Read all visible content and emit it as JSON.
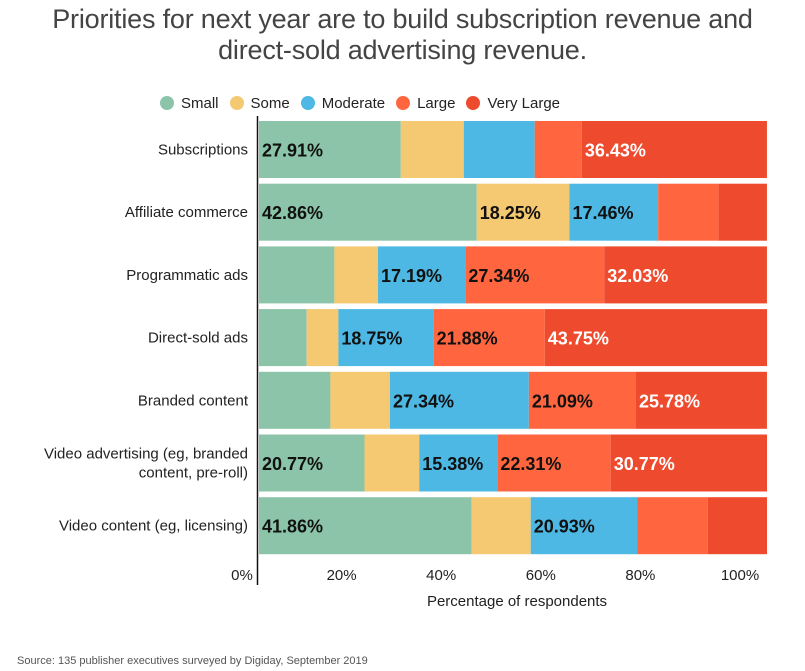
{
  "chart_data": {
    "type": "bar",
    "orientation": "horizontal",
    "stacked": true,
    "normalized": true,
    "title": "Priorities for next year are to build subscription revenue and direct-sold advertising revenue.",
    "title_lines": [
      "Priorities for next year are to build subscription revenue and",
      "direct-sold advertising revenue."
    ],
    "xlabel": "Percentage of respondents",
    "ylabel": "",
    "xlim": [
      0,
      100
    ],
    "x_ticks": [
      "0%",
      "20%",
      "40%",
      "60%",
      "80%",
      "100%"
    ],
    "grid": false,
    "legend_position": "top",
    "categories": [
      "Subscriptions",
      "Affiliate commerce",
      "Programmatic ads",
      "Direct-sold ads",
      "Branded content",
      "Video advertising (eg, branded content, pre-roll)",
      "Video content (eg, licensing)"
    ],
    "category_lines": [
      [
        "Subscriptions"
      ],
      [
        "Affiliate commerce"
      ],
      [
        "Programmatic ads"
      ],
      [
        "Direct-sold ads"
      ],
      [
        "Branded content"
      ],
      [
        "Video advertising (eg, branded",
        "content, pre-roll)"
      ],
      [
        "Video content (eg, licensing)"
      ]
    ],
    "series": [
      {
        "name": "Small",
        "color": "#8bc4a8",
        "label_color": "#111111",
        "values": [
          27.91,
          42.86,
          14.84,
          9.38,
          14.06,
          20.77,
          41.86
        ],
        "labels": [
          "27.91%",
          "42.86%",
          "",
          "",
          "",
          "20.77%",
          "41.86%"
        ]
      },
      {
        "name": "Some",
        "color": "#f5c872",
        "label_color": "#111111",
        "values": [
          12.4,
          18.25,
          8.59,
          6.25,
          11.72,
          10.77,
          11.63
        ],
        "labels": [
          "",
          "18.25%",
          "",
          "",
          "",
          "",
          ""
        ]
      },
      {
        "name": "Moderate",
        "color": "#4db8e3",
        "label_color": "#111111",
        "values": [
          13.95,
          17.46,
          17.19,
          18.75,
          27.34,
          15.38,
          20.93
        ],
        "labels": [
          "",
          "17.46%",
          "17.19%",
          "18.75%",
          "27.34%",
          "15.38%",
          "20.93%"
        ]
      },
      {
        "name": "Large",
        "color": "#ff6640",
        "label_color": "#111111",
        "values": [
          9.3,
          11.9,
          27.34,
          21.88,
          21.09,
          22.31,
          13.95
        ],
        "labels": [
          "",
          "",
          "27.34%",
          "21.88%",
          "21.09%",
          "22.31%",
          ""
        ]
      },
      {
        "name": "Very Large",
        "color": "#ee4b2e",
        "label_color": "#ffffff",
        "values": [
          36.43,
          9.52,
          32.03,
          43.75,
          25.78,
          30.77,
          11.63
        ],
        "labels": [
          "36.43%",
          "",
          "32.03%",
          "43.75%",
          "25.78%",
          "30.77%",
          ""
        ]
      }
    ],
    "source": "Source: 135 publisher executives surveyed by Digiday, September 2019"
  }
}
